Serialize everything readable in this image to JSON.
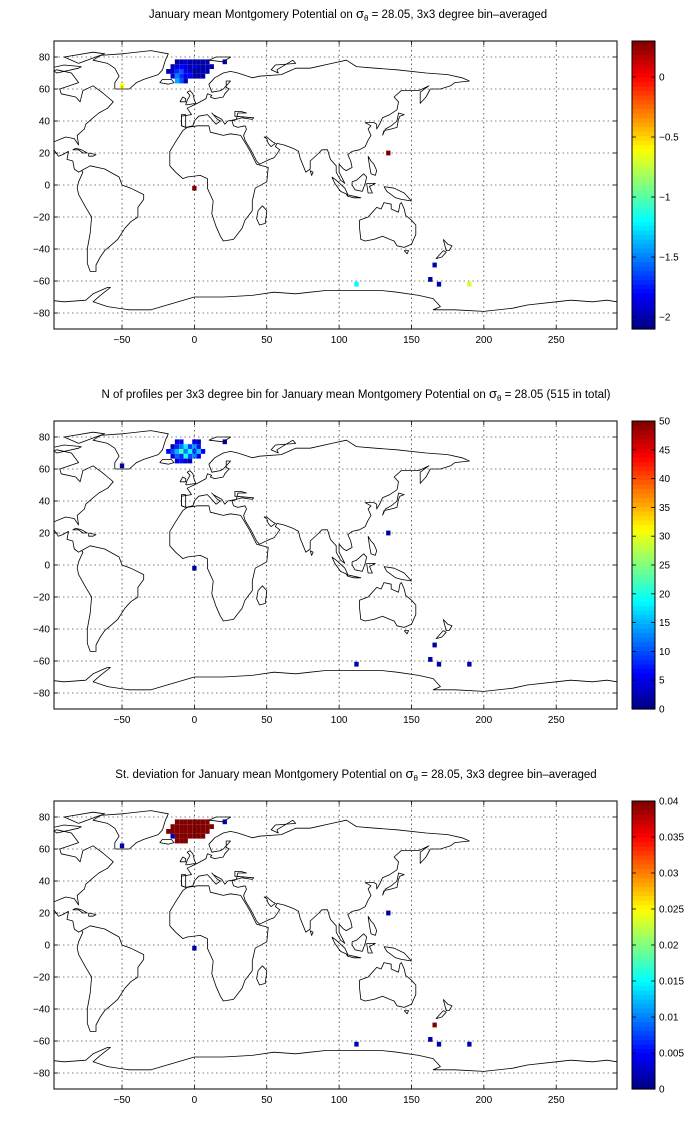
{
  "panels": [
    {
      "title_parts": [
        "January mean Montgomery Potential on ",
        "σ",
        "θ",
        " = 28.05, 3x3 degree bin–averaged"
      ],
      "colorbar": {
        "ticks": [
          0,
          -0.5,
          -1,
          -1.5,
          -2
        ],
        "tick_labels": [
          "0",
          "−0.5",
          "−1",
          "−1.5",
          "−2"
        ],
        "range": [
          -2.1,
          0.3
        ]
      }
    },
    {
      "title_parts": [
        "N of profiles per 3x3 degree bin for January mean Montgomery Potential on ",
        "σ",
        "θ",
        " = 28.05 (515 in total)"
      ],
      "colorbar": {
        "ticks": [
          0,
          5,
          10,
          15,
          20,
          25,
          30,
          35,
          40,
          45,
          50
        ],
        "tick_labels": [
          "0",
          "5",
          "10",
          "15",
          "20",
          "25",
          "30",
          "35",
          "40",
          "45",
          "50"
        ],
        "range": [
          0,
          50
        ]
      }
    },
    {
      "title_parts": [
        "St. deviation for January mean Montgomery Potential on ",
        "σ",
        "θ",
        " = 28.05, 3x3 degree bin–averaged"
      ],
      "colorbar": {
        "ticks": [
          0,
          0.005,
          0.01,
          0.015,
          0.02,
          0.025,
          0.03,
          0.035,
          0.04
        ],
        "tick_labels": [
          "0",
          "0.005",
          "0.01",
          "0.015",
          "0.02",
          "0.025",
          "0.03",
          "0.035",
          "0.04"
        ],
        "range": [
          0,
          0.04
        ]
      }
    }
  ],
  "chart_data": [
    {
      "type": "heatmap",
      "title": "January mean Montgomery Potential on σθ = 28.05, 3x3 degree bin–averaged",
      "xlim": [
        -97,
        292
      ],
      "ylim": [
        -90,
        90
      ],
      "xticks": [
        -50,
        0,
        50,
        100,
        150,
        200,
        250
      ],
      "yticks": [
        -80,
        -60,
        -40,
        -20,
        0,
        20,
        40,
        60,
        80
      ],
      "grid": true,
      "colormap": "jet",
      "clim": [
        -2.1,
        0.3
      ],
      "cells": [
        {
          "x": -50,
          "y": 62,
          "v": -0.6
        },
        {
          "x": -12,
          "y": 77,
          "v": -2.0
        },
        {
          "x": -9,
          "y": 77,
          "v": -2.0
        },
        {
          "x": -6,
          "y": 77,
          "v": -1.9
        },
        {
          "x": -3,
          "y": 77,
          "v": -2.0
        },
        {
          "x": 0,
          "y": 77,
          "v": -2.0
        },
        {
          "x": 3,
          "y": 77,
          "v": -2.0
        },
        {
          "x": 6,
          "y": 77,
          "v": -2.0
        },
        {
          "x": 9,
          "y": 77,
          "v": -2.0
        },
        {
          "x": 21,
          "y": 77,
          "v": -2.0
        },
        {
          "x": -15,
          "y": 74,
          "v": -2.0
        },
        {
          "x": -12,
          "y": 74,
          "v": -1.9
        },
        {
          "x": -9,
          "y": 74,
          "v": -1.8
        },
        {
          "x": -6,
          "y": 74,
          "v": -1.9
        },
        {
          "x": -3,
          "y": 74,
          "v": -2.0
        },
        {
          "x": 0,
          "y": 74,
          "v": -1.9
        },
        {
          "x": 3,
          "y": 74,
          "v": -2.0
        },
        {
          "x": 6,
          "y": 74,
          "v": -2.0
        },
        {
          "x": 9,
          "y": 74,
          "v": -2.0
        },
        {
          "x": 12,
          "y": 74,
          "v": -2.0
        },
        {
          "x": -18,
          "y": 71,
          "v": -2.0
        },
        {
          "x": -15,
          "y": 71,
          "v": -1.9
        },
        {
          "x": -12,
          "y": 71,
          "v": -1.7
        },
        {
          "x": -9,
          "y": 71,
          "v": -1.6
        },
        {
          "x": -6,
          "y": 71,
          "v": -1.8
        },
        {
          "x": -3,
          "y": 71,
          "v": -1.9
        },
        {
          "x": 0,
          "y": 71,
          "v": -2.0
        },
        {
          "x": 3,
          "y": 71,
          "v": -2.0
        },
        {
          "x": 6,
          "y": 71,
          "v": -2.0
        },
        {
          "x": 9,
          "y": 71,
          "v": -2.0
        },
        {
          "x": -15,
          "y": 68,
          "v": -1.9
        },
        {
          "x": -12,
          "y": 68,
          "v": -1.5
        },
        {
          "x": -9,
          "y": 68,
          "v": -1.7
        },
        {
          "x": -6,
          "y": 68,
          "v": -1.9
        },
        {
          "x": -3,
          "y": 68,
          "v": -1.8
        },
        {
          "x": 0,
          "y": 68,
          "v": -2.0
        },
        {
          "x": 3,
          "y": 68,
          "v": -2.0
        },
        {
          "x": 6,
          "y": 68,
          "v": -2.0
        },
        {
          "x": -12,
          "y": 65,
          "v": -1.4
        },
        {
          "x": -9,
          "y": 65,
          "v": -1.6
        },
        {
          "x": -6,
          "y": 65,
          "v": -2.0
        },
        {
          "x": 134,
          "y": 20,
          "v": 0.3
        },
        {
          "x": 0,
          "y": -2,
          "v": 0.3
        },
        {
          "x": 166,
          "y": -50,
          "v": -2.0
        },
        {
          "x": 163,
          "y": -59,
          "v": -2.0
        },
        {
          "x": 169,
          "y": -62,
          "v": -2.0
        },
        {
          "x": 112,
          "y": -62,
          "v": -1.2
        },
        {
          "x": 190,
          "y": -62,
          "v": -0.7
        }
      ]
    },
    {
      "type": "heatmap",
      "title": "N of profiles per 3x3 degree bin for January mean Montgomery Potential on σθ = 28.05 (515 in total)",
      "xlim": [
        -97,
        292
      ],
      "ylim": [
        -90,
        90
      ],
      "xticks": [
        -50,
        0,
        50,
        100,
        150,
        200,
        250
      ],
      "yticks": [
        -80,
        -60,
        -40,
        -20,
        0,
        20,
        40,
        60,
        80
      ],
      "grid": true,
      "colormap": "jet",
      "clim": [
        0,
        50
      ],
      "cells": [
        {
          "x": -50,
          "y": 62,
          "v": 2
        },
        {
          "x": -12,
          "y": 77,
          "v": 4
        },
        {
          "x": -9,
          "y": 77,
          "v": 6
        },
        {
          "x": 0,
          "y": 77,
          "v": 5
        },
        {
          "x": 3,
          "y": 77,
          "v": 3
        },
        {
          "x": 21,
          "y": 77,
          "v": 2
        },
        {
          "x": -15,
          "y": 74,
          "v": 3
        },
        {
          "x": -12,
          "y": 74,
          "v": 8
        },
        {
          "x": -9,
          "y": 74,
          "v": 12
        },
        {
          "x": -6,
          "y": 74,
          "v": 18
        },
        {
          "x": -3,
          "y": 74,
          "v": 9
        },
        {
          "x": 0,
          "y": 74,
          "v": 14
        },
        {
          "x": 3,
          "y": 74,
          "v": 7
        },
        {
          "x": -18,
          "y": 71,
          "v": 6
        },
        {
          "x": -15,
          "y": 71,
          "v": 10
        },
        {
          "x": -12,
          "y": 71,
          "v": 15
        },
        {
          "x": -9,
          "y": 71,
          "v": 22
        },
        {
          "x": -6,
          "y": 71,
          "v": 12
        },
        {
          "x": -3,
          "y": 71,
          "v": 19
        },
        {
          "x": 0,
          "y": 71,
          "v": 9
        },
        {
          "x": 3,
          "y": 71,
          "v": 16
        },
        {
          "x": 6,
          "y": 71,
          "v": 6
        },
        {
          "x": -15,
          "y": 68,
          "v": 4
        },
        {
          "x": -12,
          "y": 68,
          "v": 11
        },
        {
          "x": -9,
          "y": 68,
          "v": 8
        },
        {
          "x": -6,
          "y": 68,
          "v": 20
        },
        {
          "x": -3,
          "y": 68,
          "v": 10
        },
        {
          "x": 0,
          "y": 68,
          "v": 13
        },
        {
          "x": 3,
          "y": 68,
          "v": 5
        },
        {
          "x": -12,
          "y": 65,
          "v": 5
        },
        {
          "x": -9,
          "y": 65,
          "v": 7
        },
        {
          "x": -6,
          "y": 65,
          "v": 4
        },
        {
          "x": -3,
          "y": 65,
          "v": 3
        },
        {
          "x": 134,
          "y": 20,
          "v": 2
        },
        {
          "x": 0,
          "y": -2,
          "v": 2
        },
        {
          "x": 166,
          "y": -50,
          "v": 2
        },
        {
          "x": 163,
          "y": -59,
          "v": 2
        },
        {
          "x": 169,
          "y": -62,
          "v": 2
        },
        {
          "x": 112,
          "y": -62,
          "v": 2
        },
        {
          "x": 190,
          "y": -62,
          "v": 2
        }
      ]
    },
    {
      "type": "heatmap",
      "title": "St. deviation for January mean Montgomery Potential on σθ = 28.05, 3x3 degree bin–averaged",
      "xlim": [
        -97,
        292
      ],
      "ylim": [
        -90,
        90
      ],
      "xticks": [
        -50,
        0,
        50,
        100,
        150,
        200,
        250
      ],
      "yticks": [
        -80,
        -60,
        -40,
        -20,
        0,
        20,
        40,
        60,
        80
      ],
      "grid": true,
      "colormap": "jet",
      "clim": [
        0,
        0.04
      ],
      "cells": [
        {
          "x": -50,
          "y": 62,
          "v": 0.002
        },
        {
          "x": -12,
          "y": 77,
          "v": 0.04
        },
        {
          "x": -9,
          "y": 77,
          "v": 0.04
        },
        {
          "x": -6,
          "y": 77,
          "v": 0.04
        },
        {
          "x": -3,
          "y": 77,
          "v": 0.04
        },
        {
          "x": 0,
          "y": 77,
          "v": 0.04
        },
        {
          "x": 3,
          "y": 77,
          "v": 0.04
        },
        {
          "x": 6,
          "y": 77,
          "v": 0.04
        },
        {
          "x": 9,
          "y": 77,
          "v": 0.04
        },
        {
          "x": 21,
          "y": 77,
          "v": 0.003
        },
        {
          "x": -15,
          "y": 74,
          "v": 0.04
        },
        {
          "x": -12,
          "y": 74,
          "v": 0.04
        },
        {
          "x": -9,
          "y": 74,
          "v": 0.04
        },
        {
          "x": -6,
          "y": 74,
          "v": 0.04
        },
        {
          "x": -3,
          "y": 74,
          "v": 0.04
        },
        {
          "x": 0,
          "y": 74,
          "v": 0.04
        },
        {
          "x": 3,
          "y": 74,
          "v": 0.04
        },
        {
          "x": 6,
          "y": 74,
          "v": 0.04
        },
        {
          "x": 9,
          "y": 74,
          "v": 0.04
        },
        {
          "x": 12,
          "y": 74,
          "v": 0.04
        },
        {
          "x": -18,
          "y": 71,
          "v": 0.04
        },
        {
          "x": -15,
          "y": 71,
          "v": 0.04
        },
        {
          "x": -12,
          "y": 71,
          "v": 0.04
        },
        {
          "x": -9,
          "y": 71,
          "v": 0.04
        },
        {
          "x": -6,
          "y": 71,
          "v": 0.04
        },
        {
          "x": -3,
          "y": 71,
          "v": 0.04
        },
        {
          "x": 0,
          "y": 71,
          "v": 0.04
        },
        {
          "x": 3,
          "y": 71,
          "v": 0.04
        },
        {
          "x": 6,
          "y": 71,
          "v": 0.04
        },
        {
          "x": 9,
          "y": 71,
          "v": 0.04
        },
        {
          "x": -15,
          "y": 68,
          "v": 0.002
        },
        {
          "x": -12,
          "y": 68,
          "v": 0.04
        },
        {
          "x": -9,
          "y": 68,
          "v": 0.04
        },
        {
          "x": -6,
          "y": 68,
          "v": 0.04
        },
        {
          "x": -3,
          "y": 68,
          "v": 0.04
        },
        {
          "x": 0,
          "y": 68,
          "v": 0.04
        },
        {
          "x": 3,
          "y": 68,
          "v": 0.04
        },
        {
          "x": 6,
          "y": 68,
          "v": 0.04
        },
        {
          "x": -12,
          "y": 65,
          "v": 0.04
        },
        {
          "x": -9,
          "y": 65,
          "v": 0.04
        },
        {
          "x": -6,
          "y": 65,
          "v": 0.04
        },
        {
          "x": 134,
          "y": 20,
          "v": 0.002
        },
        {
          "x": 0,
          "y": -2,
          "v": 0.002
        },
        {
          "x": 166,
          "y": -50,
          "v": 0.04
        },
        {
          "x": 163,
          "y": -59,
          "v": 0.002
        },
        {
          "x": 169,
          "y": -62,
          "v": 0.002
        },
        {
          "x": 112,
          "y": -62,
          "v": 0.002
        },
        {
          "x": 190,
          "y": -62,
          "v": 0.002
        }
      ]
    }
  ]
}
